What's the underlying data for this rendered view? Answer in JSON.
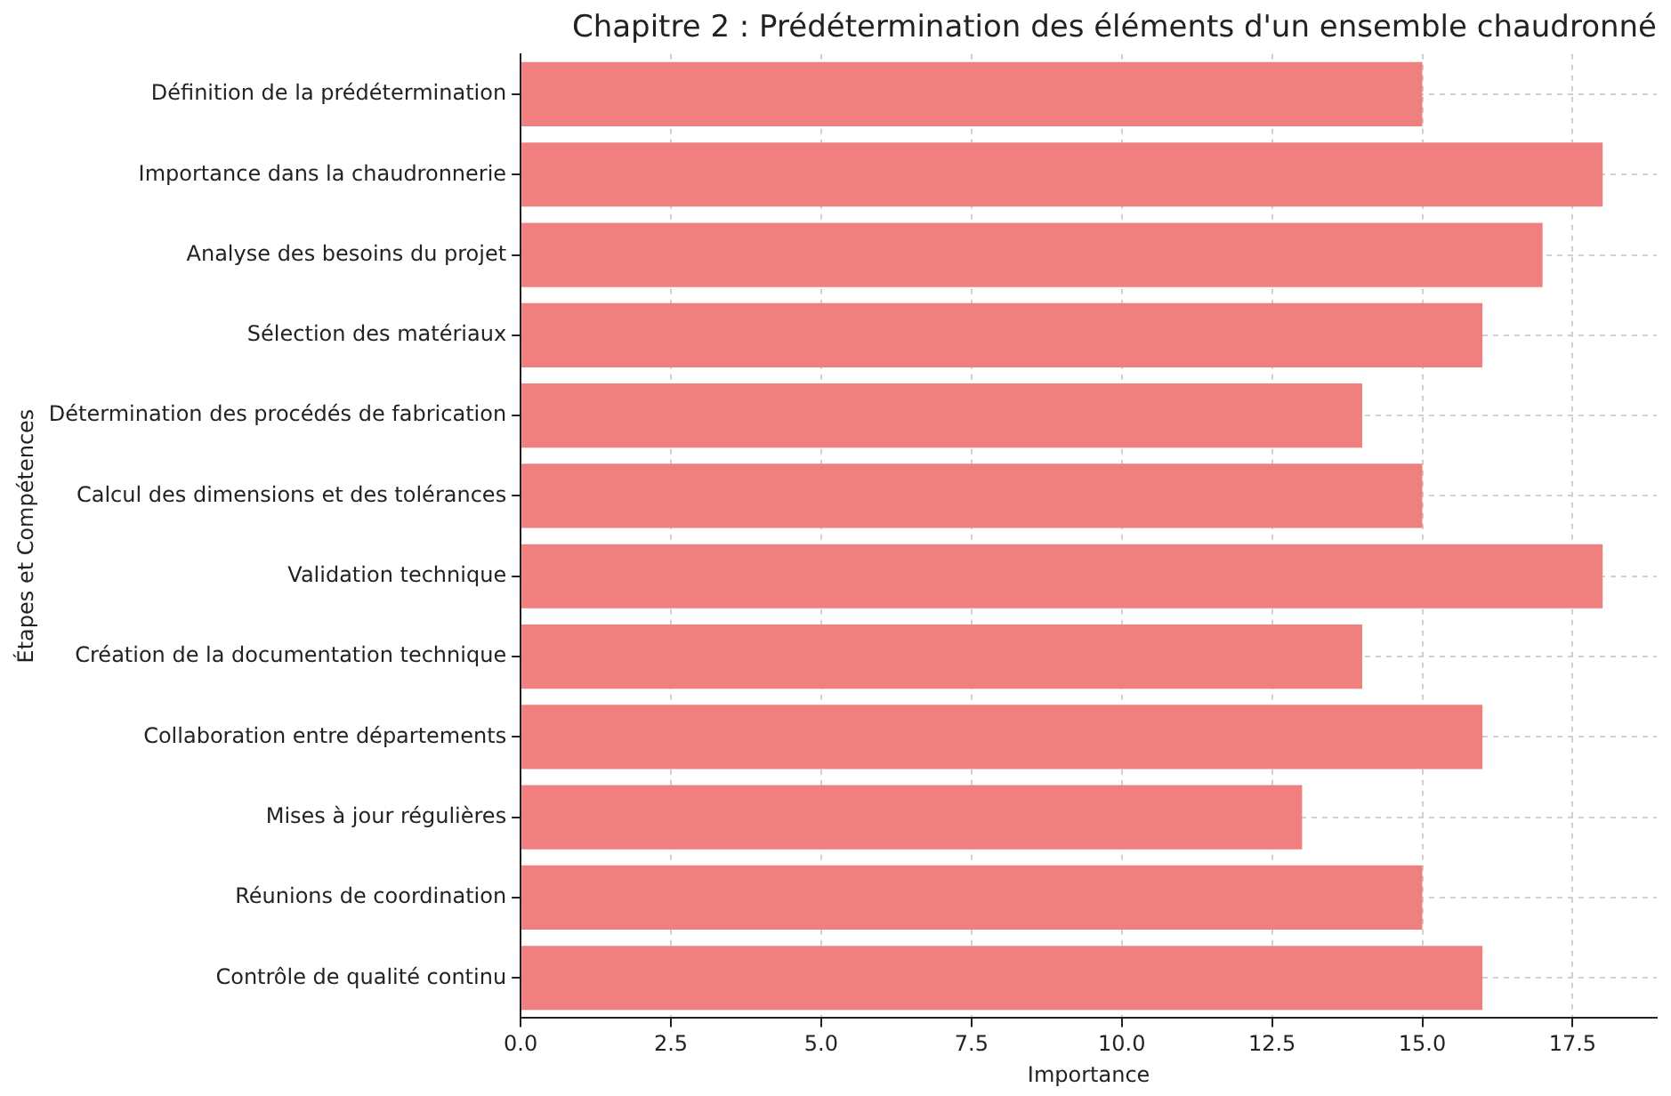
{
  "chart_data": {
    "type": "bar",
    "orientation": "horizontal",
    "title": "Chapitre 2 : Prédétermination des éléments d'un ensemble chaudronné",
    "xlabel": "Importance",
    "ylabel": "Étapes et Compétences",
    "categories": [
      "Définition de la prédétermination",
      "Importance dans la chaudronnerie",
      "Analyse des besoins du projet",
      "Sélection des matériaux",
      "Détermination des procédés de fabrication",
      "Calcul des dimensions et des tolérances",
      "Validation technique",
      "Création de la documentation technique",
      "Collaboration entre départements",
      "Mises à jour régulières",
      "Réunions de coordination",
      "Contrôle de qualité continu"
    ],
    "values": [
      15,
      18,
      17,
      16,
      14,
      15,
      18,
      14,
      16,
      13,
      15,
      16
    ],
    "color": "#f08080",
    "xlim": [
      0,
      18.9
    ],
    "xticks": [
      {
        "value": 0,
        "label": "0.0"
      },
      2.5,
      {
        "value": 5,
        "label": "5.0"
      },
      7.5,
      {
        "value": 10,
        "label": "10.0"
      },
      12.5,
      {
        "value": 15,
        "label": "15.0"
      },
      17.5
    ],
    "grid": true
  }
}
